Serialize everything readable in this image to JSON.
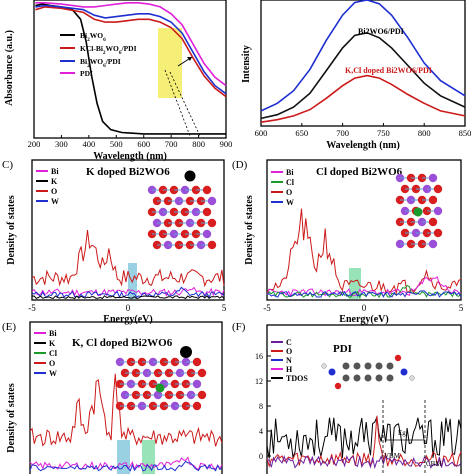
{
  "chart_data": [
    {
      "panel_label": "",
      "type": "line",
      "xlabel": "Wavelength (nm)",
      "ylabel": "Absorbance (a.u.)",
      "xlim": [
        200,
        900
      ],
      "ylim": [
        0,
        1
      ],
      "xticks": [
        "200",
        "300",
        "400",
        "500",
        "600",
        "700",
        "800",
        "900"
      ],
      "series": [
        {
          "name": "Bi2WO6",
          "color": "#000000",
          "x": [
            205,
            230,
            260,
            300,
            340,
            370,
            390,
            410,
            430,
            450,
            480,
            520,
            600,
            900
          ],
          "y": [
            0.96,
            0.97,
            0.96,
            0.95,
            0.93,
            0.86,
            0.7,
            0.45,
            0.25,
            0.12,
            0.06,
            0.04,
            0.03,
            0.03
          ]
        },
        {
          "name": "KCl-Bi2WO6/PDI",
          "color": "#cc1a1a",
          "x": [
            205,
            240,
            300,
            380,
            420,
            460,
            500,
            540,
            580,
            620,
            660,
            700,
            740,
            780,
            820,
            860,
            900
          ],
          "y": [
            0.93,
            0.95,
            0.94,
            0.91,
            0.86,
            0.84,
            0.84,
            0.85,
            0.86,
            0.86,
            0.84,
            0.8,
            0.72,
            0.58,
            0.45,
            0.36,
            0.3
          ]
        },
        {
          "name": "Bi2WO6/PDI",
          "color": "#1f2fd0",
          "x": [
            205,
            240,
            300,
            380,
            420,
            460,
            500,
            540,
            580,
            620,
            660,
            700,
            740,
            780,
            820,
            860,
            900
          ],
          "y": [
            0.95,
            0.96,
            0.95,
            0.93,
            0.89,
            0.87,
            0.88,
            0.89,
            0.9,
            0.9,
            0.88,
            0.84,
            0.76,
            0.62,
            0.48,
            0.38,
            0.32
          ]
        },
        {
          "name": "PDI",
          "color": "#e020d8",
          "x": [
            205,
            240,
            300,
            380,
            420,
            460,
            500,
            540,
            580,
            620,
            660,
            700,
            740,
            780,
            820,
            860,
            900
          ],
          "y": [
            0.98,
            0.98,
            0.97,
            0.95,
            0.95,
            0.96,
            0.97,
            0.98,
            0.98,
            0.97,
            0.95,
            0.9,
            0.82,
            0.68,
            0.54,
            0.44,
            0.38
          ]
        }
      ]
    },
    {
      "panel_label": "",
      "type": "line",
      "xlabel": "Wavelength (nm)",
      "ylabel": "Intensity",
      "xlim": [
        600,
        850
      ],
      "ylim": [
        0,
        1
      ],
      "xticks": [
        "600",
        "650",
        "700",
        "750",
        "800",
        "850"
      ],
      "series": [
        {
          "name": "",
          "color": "#1f2fd0",
          "x": [
            600,
            620,
            640,
            660,
            680,
            700,
            715,
            730,
            745,
            760,
            780,
            800,
            820,
            850
          ],
          "y": [
            0.12,
            0.18,
            0.28,
            0.45,
            0.68,
            0.88,
            0.98,
            1.0,
            0.97,
            0.88,
            0.7,
            0.5,
            0.36,
            0.24
          ]
        },
        {
          "name": "",
          "color": "#111111",
          "x": [
            600,
            620,
            640,
            660,
            680,
            700,
            715,
            730,
            745,
            760,
            780,
            800,
            820,
            850
          ],
          "y": [
            0.06,
            0.09,
            0.15,
            0.26,
            0.44,
            0.62,
            0.72,
            0.74,
            0.7,
            0.62,
            0.48,
            0.34,
            0.24,
            0.15
          ]
        },
        {
          "name": "",
          "color": "#cc1a1a",
          "x": [
            600,
            620,
            640,
            660,
            680,
            700,
            715,
            730,
            745,
            760,
            780,
            800,
            820,
            850
          ],
          "y": [
            0.03,
            0.05,
            0.08,
            0.13,
            0.22,
            0.32,
            0.38,
            0.4,
            0.38,
            0.33,
            0.25,
            0.18,
            0.12,
            0.08
          ]
        }
      ],
      "annotations": [
        "Bi2WO6/PDI",
        "K,Cl doped Bi2WO6/PDI"
      ]
    },
    {
      "panel_label": "C)",
      "type": "line",
      "title": "K doped Bi2WO6",
      "xlabel": "Energy(eV)",
      "ylabel": "Density of states",
      "xlim": [
        -5,
        5
      ],
      "xticks": [
        "-5",
        "0",
        "5"
      ],
      "series": [
        {
          "name": "Bi",
          "color": "#e020d8"
        },
        {
          "name": "K",
          "color": "#000000"
        },
        {
          "name": "O",
          "color": "#cc1a1a"
        },
        {
          "name": "W",
          "color": "#1f2fd0"
        }
      ]
    },
    {
      "panel_label": "(D)",
      "type": "line",
      "title": "Cl doped Bi2WO6",
      "xlabel": "Energy(eV)",
      "ylabel": "Density of states",
      "xlim": [
        -5,
        5
      ],
      "xticks": [
        "-5",
        "0",
        "5"
      ],
      "series": [
        {
          "name": "Bi",
          "color": "#e020d8"
        },
        {
          "name": "Cl",
          "color": "#1a9a2a"
        },
        {
          "name": "O",
          "color": "#cc1a1a"
        },
        {
          "name": "W",
          "color": "#1f2fd0"
        }
      ]
    },
    {
      "panel_label": "(E)",
      "type": "line",
      "title": "K, Cl doped Bi2WO6",
      "ylabel": "Density of states",
      "series": [
        {
          "name": "Bi",
          "color": "#e020d8"
        },
        {
          "name": "K",
          "color": "#000000"
        },
        {
          "name": "Cl",
          "color": "#1a9a2a"
        },
        {
          "name": "O",
          "color": "#cc1a1a"
        },
        {
          "name": "W",
          "color": "#1f2fd0"
        }
      ]
    },
    {
      "panel_label": "(F)",
      "type": "line",
      "title": "PDI",
      "yticks": [
        "16",
        "12",
        "8",
        "4",
        "0"
      ],
      "series": [
        {
          "name": "C",
          "color": "#6a1fa0"
        },
        {
          "name": "O",
          "color": "#cc1a1a"
        },
        {
          "name": "N",
          "color": "#1f2fd0"
        },
        {
          "name": "H",
          "color": "#e020d8"
        },
        {
          "name": "TDOS",
          "color": "#000000"
        }
      ],
      "annotations": [
        "VBM",
        "CBM",
        "Eg"
      ]
    }
  ]
}
